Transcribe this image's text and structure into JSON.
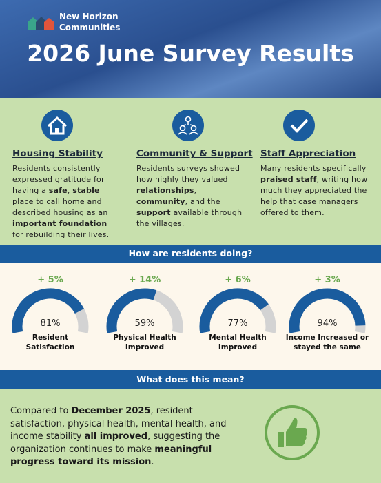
{
  "header": {
    "org": "New Horizon Communities",
    "title": "2026 June Survey Results"
  },
  "highlights": [
    {
      "heading": "Housing Stability",
      "body": [
        {
          "t": "Residents consistently expressed gratitude for having a "
        },
        {
          "t": "safe",
          "b": true
        },
        {
          "t": ", "
        },
        {
          "t": "stable",
          "b": true
        },
        {
          "t": " place to call home and described housing as an "
        },
        {
          "t": "important foundation",
          "b": true
        },
        {
          "t": " for rebuilding their lives."
        }
      ]
    },
    {
      "heading": "Community & Support",
      "body": [
        {
          "t": "Residents surveys showed how highly they valued "
        },
        {
          "t": "relationships",
          "b": true
        },
        {
          "t": ", "
        },
        {
          "t": "community",
          "b": true
        },
        {
          "t": ", and the "
        },
        {
          "t": "support",
          "b": true
        },
        {
          "t": " available through the villages."
        }
      ]
    },
    {
      "heading": "Staff Appreciation",
      "body": [
        {
          "t": "Many residents specifically "
        },
        {
          "t": "praised staff",
          "b": true
        },
        {
          "t": ", writing how much they appreciated the help that case managers offered to them."
        }
      ]
    }
  ],
  "metrics": {
    "heading": "How are residents doing?",
    "items": [
      {
        "change": "+ 5%",
        "value": 81,
        "value_label": "81%",
        "label": "Resident Satisfaction"
      },
      {
        "change": "+ 14%",
        "value": 59,
        "value_label": "59%",
        "label": "Physical Health Improved"
      },
      {
        "change": "+ 6%",
        "value": 77,
        "value_label": "77%",
        "label": "Mental Health Improved"
      },
      {
        "change": "+ 3%",
        "value": 94,
        "value_label": "94%",
        "label": "Income Increased or stayed the same"
      }
    ]
  },
  "summary": {
    "heading": "What does this mean?",
    "body": [
      {
        "t": "Compared to "
      },
      {
        "t": "December 2025",
        "b": true
      },
      {
        "t": ", resident satisfaction, physical health, mental health, and income stability "
      },
      {
        "t": "all improved",
        "b": true
      },
      {
        "t": ", suggesting the organization continues to make "
      },
      {
        "t": "meaningful progress toward its mission",
        "b": true
      },
      {
        "t": "."
      }
    ]
  }
}
